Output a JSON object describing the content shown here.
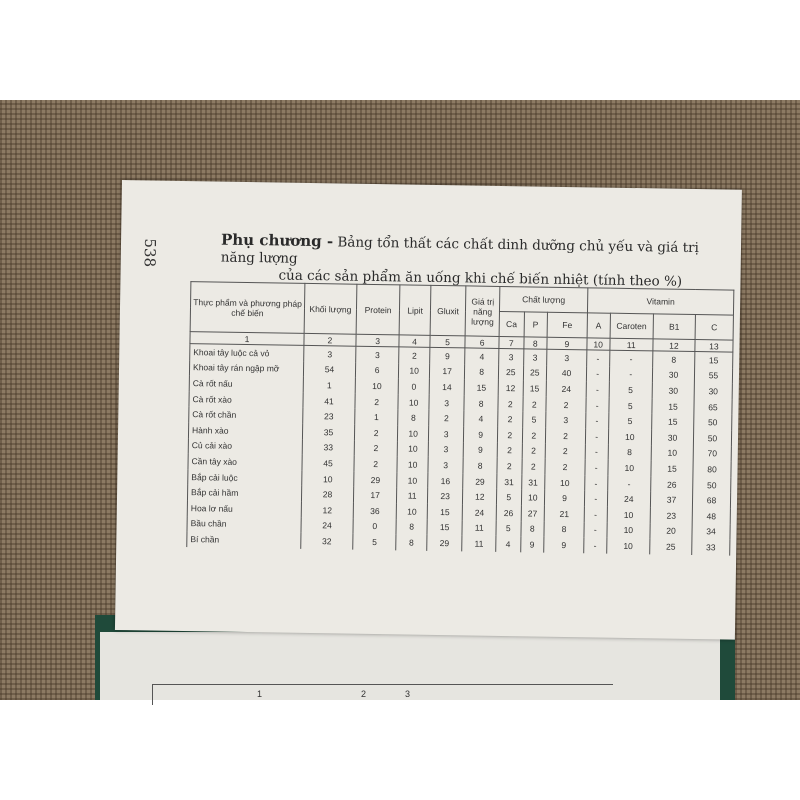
{
  "page_number": "538",
  "title": {
    "lead": "Phụ chương -",
    "line1": "Bảng tổn thất các chất dinh dưỡng chủ yếu và giá trị năng lượng",
    "line2": "của các sản phẩm ăn uống khi chế biến nhiệt (tính theo %)"
  },
  "table": {
    "headers": {
      "food": "Thực phẩm và phương pháp chế biến",
      "mass": "Khối lượng",
      "protein": "Protein",
      "lipit": "Lipit",
      "gluxit": "Gluxit",
      "energy": "Giá trị năng lượng",
      "minerals": "Chất lượng",
      "ca": "Ca",
      "p": "P",
      "fe": "Fe",
      "vitamin": "Vitamin",
      "a": "A",
      "caroten": "Caroten",
      "b1": "B1",
      "c": "C"
    },
    "column_numbers": [
      "1",
      "2",
      "3",
      "4",
      "5",
      "6",
      "7",
      "8",
      "9",
      "10",
      "11",
      "12",
      "13"
    ],
    "rows": [
      [
        "Khoai tây luộc cả vỏ",
        "3",
        "3",
        "2",
        "9",
        "4",
        "3",
        "3",
        "3",
        "-",
        "-",
        "8",
        "15"
      ],
      [
        "Khoai tây rán ngập mỡ",
        "54",
        "6",
        "10",
        "17",
        "8",
        "25",
        "25",
        "40",
        "-",
        "-",
        "30",
        "55"
      ],
      [
        "Cà rốt nấu",
        "1",
        "10",
        "0",
        "14",
        "15",
        "12",
        "15",
        "24",
        "-",
        "5",
        "30",
        "30"
      ],
      [
        "Cà rốt xào",
        "41",
        "2",
        "10",
        "3",
        "8",
        "2",
        "2",
        "2",
        "-",
        "5",
        "15",
        "65"
      ],
      [
        "Cà rốt chần",
        "23",
        "1",
        "8",
        "2",
        "4",
        "2",
        "5",
        "3",
        "-",
        "5",
        "15",
        "50"
      ],
      [
        "Hành xào",
        "35",
        "2",
        "10",
        "3",
        "9",
        "2",
        "2",
        "2",
        "-",
        "10",
        "30",
        "50"
      ],
      [
        "Củ cải xào",
        "33",
        "2",
        "10",
        "3",
        "9",
        "2",
        "2",
        "2",
        "-",
        "8",
        "10",
        "70"
      ],
      [
        "Cần tây xào",
        "45",
        "2",
        "10",
        "3",
        "8",
        "2",
        "2",
        "2",
        "-",
        "10",
        "15",
        "80"
      ],
      [
        "Bắp cải luộc",
        "10",
        "29",
        "10",
        "16",
        "29",
        "31",
        "31",
        "10",
        "-",
        "-",
        "26",
        "50"
      ],
      [
        "Bắp cải hầm",
        "28",
        "17",
        "11",
        "23",
        "12",
        "5",
        "10",
        "9",
        "-",
        "24",
        "37",
        "68"
      ],
      [
        "Hoa lơ nấu",
        "12",
        "36",
        "10",
        "15",
        "24",
        "26",
        "27",
        "21",
        "-",
        "10",
        "23",
        "48"
      ],
      [
        "Bầu chần",
        "24",
        "0",
        "8",
        "15",
        "11",
        "5",
        "8",
        "8",
        "-",
        "10",
        "20",
        "34"
      ],
      [
        "Bí chần",
        "32",
        "5",
        "8",
        "29",
        "11",
        "4",
        "9",
        "9",
        "-",
        "10",
        "25",
        "33"
      ]
    ]
  },
  "lower_page": {
    "column_numbers": [
      "1",
      "2",
      "3"
    ]
  }
}
